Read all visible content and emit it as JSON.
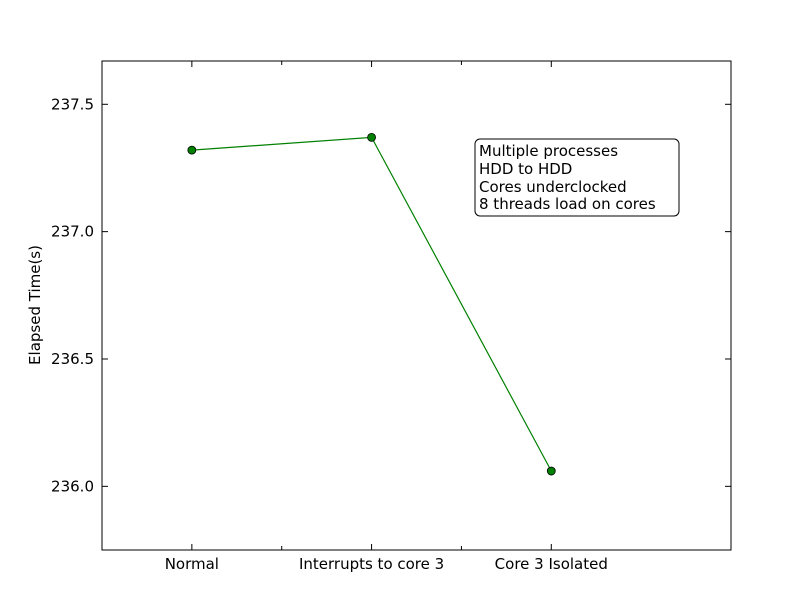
{
  "chart_data": {
    "type": "line",
    "categories": [
      "Normal",
      "Interrupts to core 3",
      "Core 3 Isolated"
    ],
    "series": [
      {
        "values": [
          237.32,
          237.37,
          236.06
        ],
        "color": "#008000",
        "marker": "circle"
      }
    ],
    "xlabel": "",
    "ylabel": "Elapsed Time(s)",
    "ylim": [
      235.75,
      237.67
    ],
    "yticks": [
      236.0,
      236.5,
      237.0,
      237.5
    ],
    "ytick_labels": [
      "236.0",
      "236.5",
      "237.0",
      "237.5"
    ],
    "grid": false,
    "annotation": {
      "lines": [
        "Multiple processes",
        "HDD to HDD",
        "Cores underclocked",
        "8 threads load on cores"
      ]
    }
  }
}
